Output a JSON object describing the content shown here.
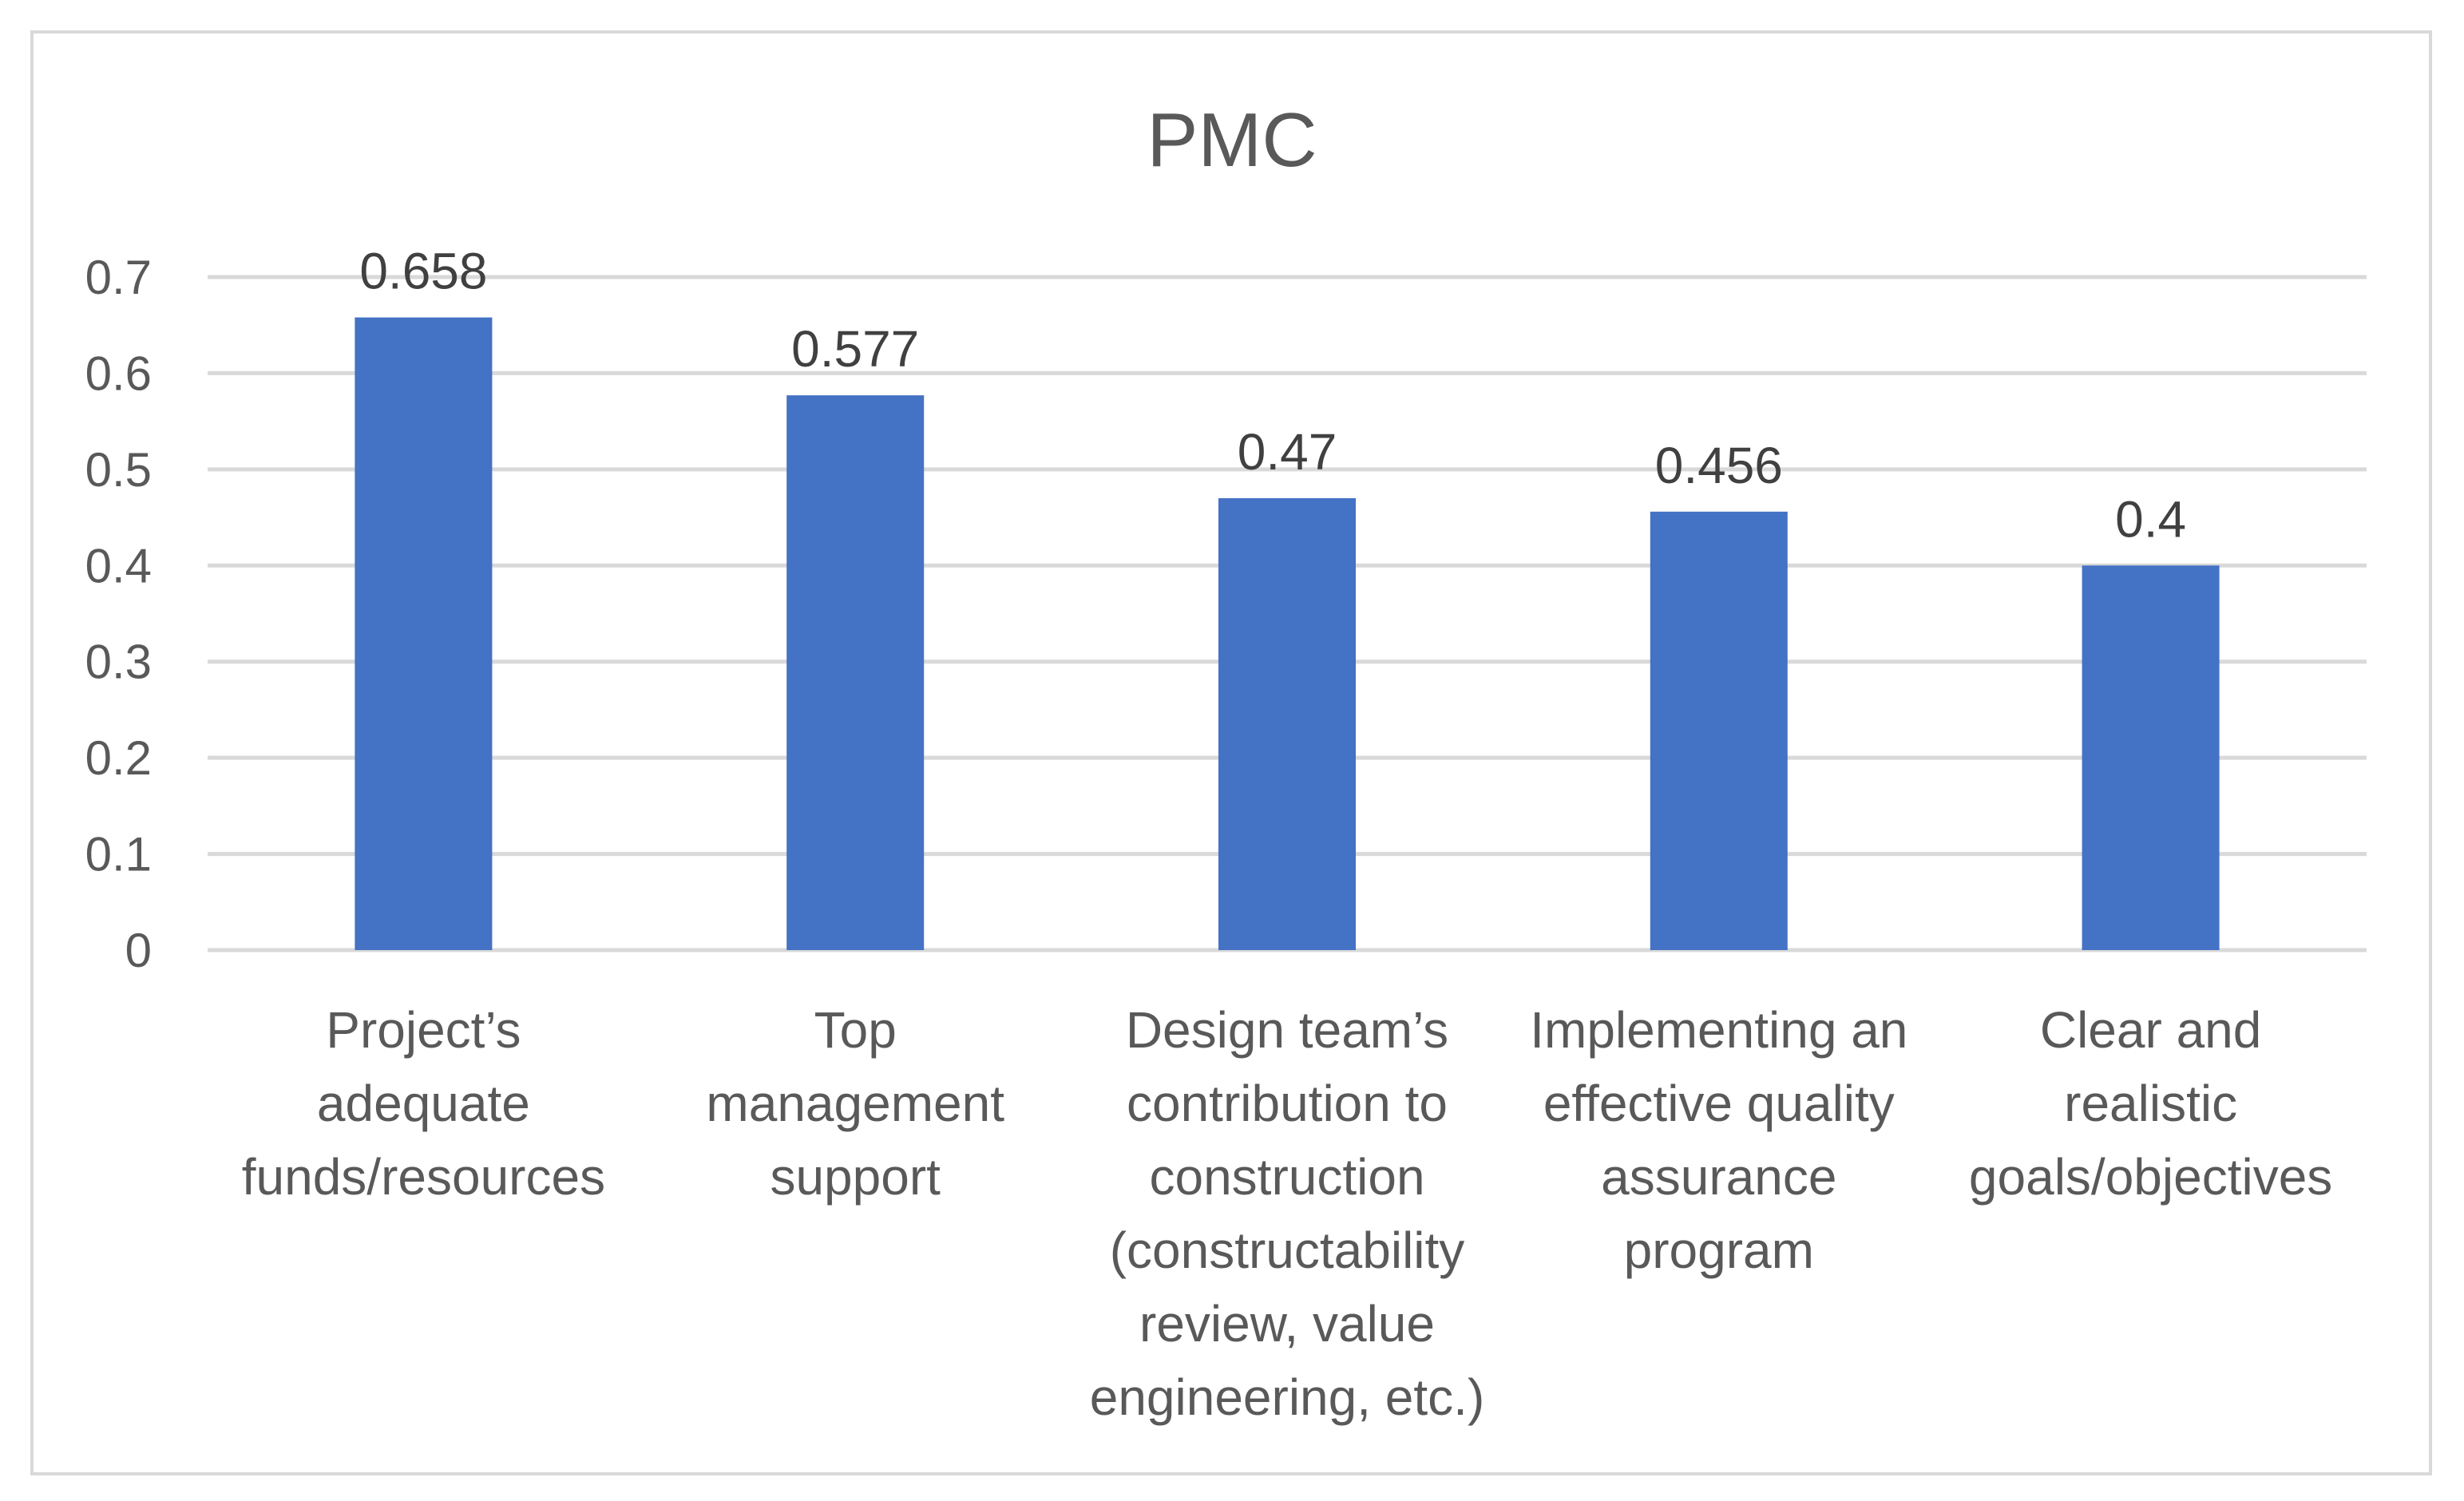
{
  "chart_data": {
    "type": "bar",
    "title": "PMC",
    "xlabel": "",
    "ylabel": "",
    "ylim": [
      0,
      0.7
    ],
    "y_ticks": [
      "0",
      "0.1",
      "0.2",
      "0.3",
      "0.4",
      "0.5",
      "0.6",
      "0.7"
    ],
    "y_tick_values": [
      0,
      0.1,
      0.2,
      0.3,
      0.4,
      0.5,
      0.6,
      0.7
    ],
    "grid": true,
    "legend": "none",
    "bar_color": "#4472c4",
    "categories": [
      [
        "Project’s",
        "adequate",
        "funds/resources"
      ],
      [
        "Top",
        "management",
        "support"
      ],
      [
        "Design team’s",
        "contribution to",
        "construction",
        "(constructability",
        "review, value",
        "engineering, etc.)"
      ],
      [
        "Implementing an",
        "effective quality",
        "assurance",
        "program"
      ],
      [
        "Clear and",
        "realistic",
        "goals/objectives"
      ]
    ],
    "values": [
      0.658,
      0.577,
      0.47,
      0.456,
      0.4
    ],
    "data_labels": [
      "0.658",
      "0.577",
      "0.47",
      "0.456",
      "0.4"
    ]
  }
}
